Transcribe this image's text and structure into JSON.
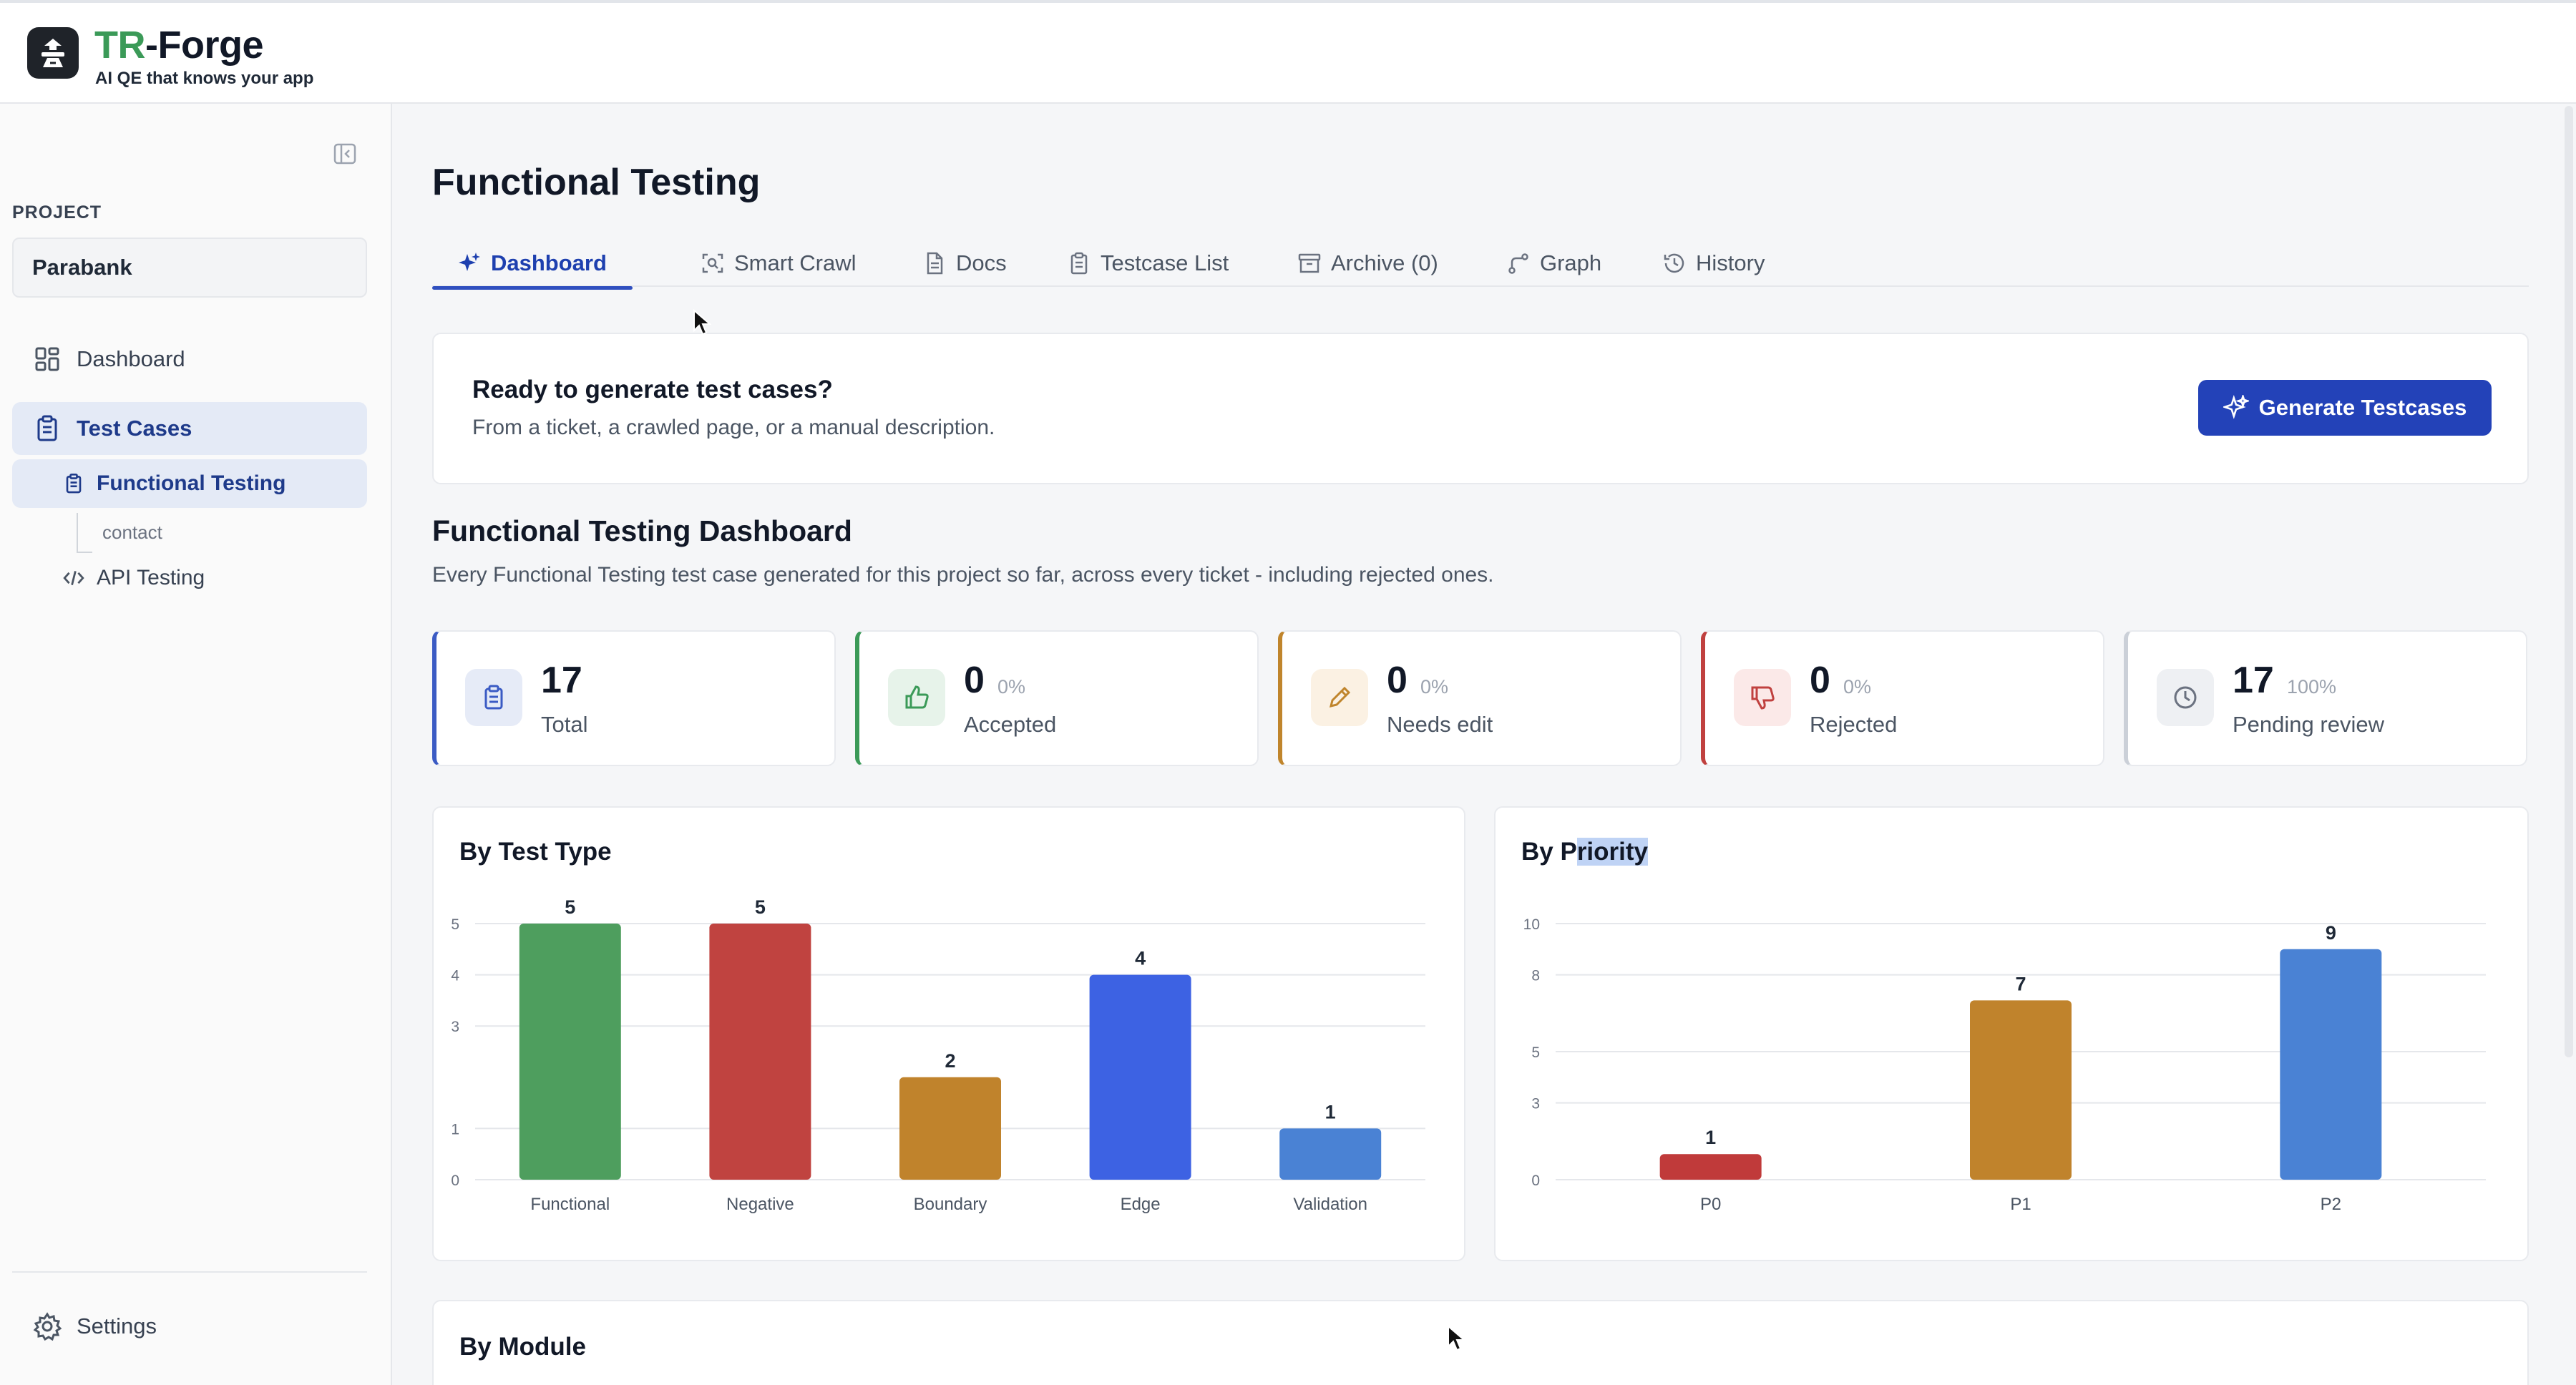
{
  "app": {
    "name_accent": "TR",
    "name_rest": "-Forge",
    "tagline": "AI QE that knows your app"
  },
  "sidebar": {
    "project_label": "PROJECT",
    "project_value": "Parabank",
    "items": [
      {
        "label": "Dashboard",
        "icon": "grid-icon"
      },
      {
        "label": "Test Cases",
        "icon": "clipboard-icon"
      },
      {
        "label": "Functional Testing",
        "icon": "clipboard-icon"
      },
      {
        "label": "contact"
      },
      {
        "label": "API Testing",
        "icon": "code-icon"
      }
    ],
    "settings_label": "Settings"
  },
  "main": {
    "title": "Functional Testing",
    "tabs": [
      {
        "label": "Dashboard",
        "icon": "sparkle-icon",
        "active": true
      },
      {
        "label": "Smart Crawl",
        "icon": "scan-icon"
      },
      {
        "label": "Docs",
        "icon": "document-icon"
      },
      {
        "label": "Testcase List",
        "icon": "clipboard-icon"
      },
      {
        "label": "Archive (0)",
        "icon": "archive-icon"
      },
      {
        "label": "Graph",
        "icon": "branch-icon"
      },
      {
        "label": "History",
        "icon": "history-icon"
      }
    ],
    "cta": {
      "title": "Ready to generate test cases?",
      "subtitle": "From a ticket, a crawled page, or a manual description.",
      "button": "Generate Testcases"
    },
    "dashboard": {
      "title": "Functional Testing Dashboard",
      "subtitle": "Every Functional Testing test case generated for this project so far, across every ticket - including rejected ones."
    },
    "stats": [
      {
        "value": "17",
        "percent": "",
        "label": "Total",
        "color": "#3b5bc4"
      },
      {
        "value": "0",
        "percent": "0%",
        "label": "Accepted",
        "color": "#3b9a58"
      },
      {
        "value": "0",
        "percent": "0%",
        "label": "Needs edit",
        "color": "#c0852c"
      },
      {
        "value": "0",
        "percent": "0%",
        "label": "Rejected",
        "color": "#c0413f"
      },
      {
        "value": "17",
        "percent": "100%",
        "label": "Pending review",
        "color": "#cbd0d8"
      }
    ],
    "module_title": "By Module"
  },
  "chart_data": [
    {
      "type": "bar",
      "title_pre": "By Test Type",
      "categories": [
        "Functional",
        "Negative",
        "Boundary",
        "Edge",
        "Validation"
      ],
      "values": [
        5,
        5,
        2,
        4,
        1
      ],
      "colors": [
        "#4e9e5e",
        "#c04340",
        "#c0832c",
        "#3d62e3",
        "#4a82d4"
      ],
      "yticks": [
        "0",
        "1",
        "3",
        "4",
        "5"
      ],
      "ylim": [
        0,
        5
      ]
    },
    {
      "type": "bar",
      "title_pre": "By P",
      "title_hl": "riority",
      "categories": [
        "P0",
        "P1",
        "P2"
      ],
      "values": [
        1,
        7,
        9
      ],
      "colors": [
        "#c03a3a",
        "#c0832c",
        "#4a82d4"
      ],
      "yticks": [
        "0",
        "3",
        "5",
        "8",
        "10"
      ],
      "ylim": [
        0,
        10
      ]
    }
  ]
}
